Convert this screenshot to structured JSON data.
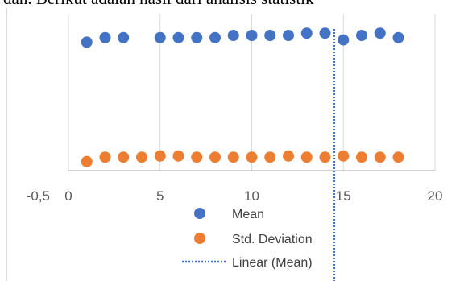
{
  "caption": "dan. Berikut adalah hasil dari analisis statistik",
  "colors": {
    "mean": "#4472c4",
    "std": "#ed7d31",
    "trend": "#4472c4",
    "grid": "#d9d9d9",
    "axis_text": "#595959"
  },
  "chart_data": {
    "type": "scatter",
    "title": "",
    "xlabel": "",
    "ylabel": "",
    "xlim": [
      0,
      20
    ],
    "x_ticks": [
      "0",
      "5",
      "10",
      "15",
      "20"
    ],
    "y_tick_label": "-0,5",
    "grid": "vertical",
    "legend_position": "bottom",
    "series": [
      {
        "name": "Mean",
        "x": [
          1,
          2,
          3,
          5,
          6,
          7,
          8,
          9,
          10,
          11,
          12,
          13,
          14,
          15,
          16,
          17,
          18
        ],
        "y": [
          0.57,
          0.59,
          0.59,
          0.59,
          0.59,
          0.59,
          0.59,
          0.6,
          0.6,
          0.6,
          0.6,
          0.61,
          0.61,
          0.58,
          0.6,
          0.61,
          0.59
        ]
      },
      {
        "name": "Std. Deviation",
        "x": [
          1,
          2,
          3,
          4,
          5,
          6,
          7,
          8,
          9,
          10,
          11,
          12,
          13,
          14,
          15,
          16,
          17,
          18
        ],
        "y": [
          0.04,
          0.06,
          0.06,
          0.06,
          0.065,
          0.065,
          0.06,
          0.06,
          0.06,
          0.06,
          0.06,
          0.065,
          0.06,
          0.06,
          0.065,
          0.06,
          0.06,
          0.06
        ]
      }
    ],
    "trendline": {
      "name": "Linear (Mean)",
      "x": 14.5
    }
  }
}
